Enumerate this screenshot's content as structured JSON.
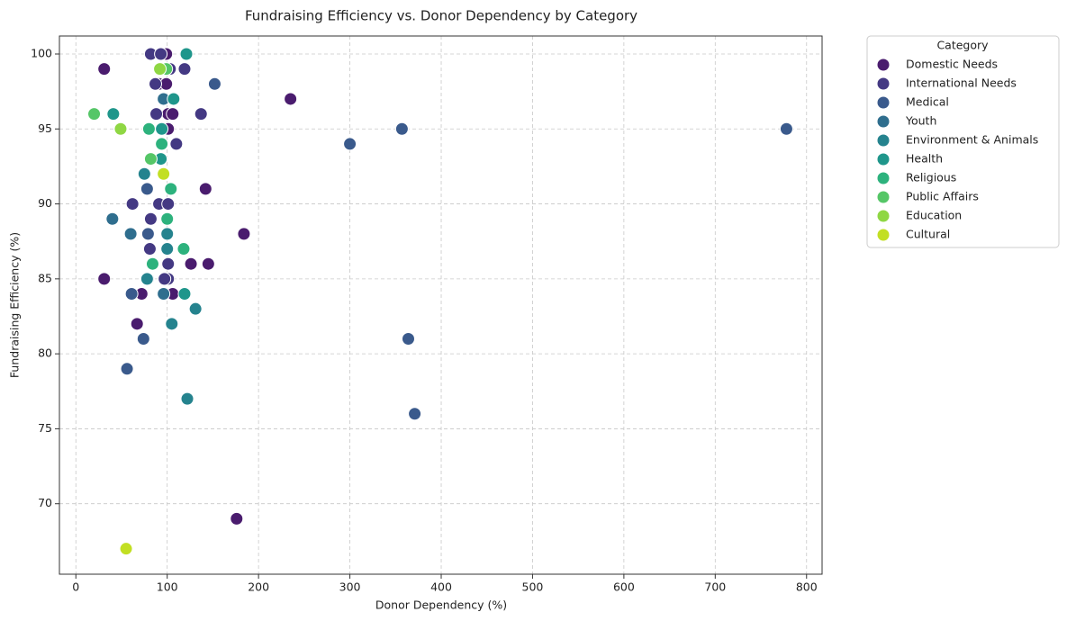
{
  "chart_data": {
    "type": "scatter",
    "title": "Fundraising Efficiency vs. Donor Dependency by Category",
    "x_label": "Donor Dependency (%)",
    "y_label": "Fundraising Efficiency (%)",
    "legend_title": "Category",
    "legend": "outside-upper-right",
    "grid": true,
    "xlim": [
      -18,
      817
    ],
    "ylim": [
      65.3,
      101.2
    ],
    "xticks": [
      0,
      100,
      200,
      300,
      400,
      500,
      600,
      700,
      800
    ],
    "yticks": [
      70,
      75,
      80,
      85,
      90,
      95,
      100
    ],
    "series": [
      {
        "name": "Domestic Needs",
        "color": "#4a1c6e",
        "x": [
          31,
          99,
          91,
          99,
          101,
          106,
          101,
          235,
          142,
          184,
          126,
          145,
          31,
          72,
          106,
          67,
          176
        ],
        "values": [
          99,
          100,
          98,
          98,
          96,
          96,
          95,
          97,
          91,
          88,
          86,
          86,
          85,
          84,
          84,
          82,
          69
        ]
      },
      {
        "name": "International Needs",
        "color": "#443983",
        "x": [
          82,
          93,
          119,
          103,
          87,
          96,
          88,
          137,
          110,
          62,
          91,
          101,
          82,
          81,
          101,
          101,
          97
        ],
        "values": [
          100,
          100,
          99,
          99,
          98,
          97,
          96,
          96,
          94,
          90,
          90,
          90,
          89,
          87,
          86,
          85,
          85
        ]
      },
      {
        "name": "Medical",
        "color": "#3a5a8c",
        "x": [
          152,
          357,
          778,
          300,
          78,
          79,
          61,
          74,
          364,
          56,
          371
        ],
        "values": [
          98,
          95,
          95,
          94,
          91,
          88,
          84,
          81,
          81,
          79,
          76
        ]
      },
      {
        "name": "Youth",
        "color": "#2f6e8e",
        "x": [
          40,
          60,
          96,
          79,
          75,
          96
        ],
        "values": [
          89,
          88,
          84,
          85,
          92,
          97
        ]
      },
      {
        "name": "Environment & Animals",
        "color": "#25838e",
        "x": [
          75,
          100,
          100,
          131,
          122,
          105,
          78
        ],
        "values": [
          92,
          88,
          87,
          83,
          77,
          82,
          85
        ]
      },
      {
        "name": "Health",
        "color": "#1f968b",
        "x": [
          121,
          41,
          107,
          94,
          119,
          93
        ],
        "values": [
          100,
          96,
          97,
          95,
          84,
          93
        ]
      },
      {
        "name": "Religious",
        "color": "#2db27d",
        "x": [
          80,
          118,
          84,
          100,
          104,
          94
        ],
        "values": [
          95,
          87,
          86,
          89,
          91,
          94
        ]
      },
      {
        "name": "Public Affairs",
        "color": "#55c667",
        "x": [
          20,
          82,
          99
        ],
        "values": [
          96,
          93,
          99
        ]
      },
      {
        "name": "Education",
        "color": "#8fd744",
        "x": [
          49,
          92
        ],
        "values": [
          95,
          99
        ]
      },
      {
        "name": "Cultural",
        "color": "#c2df23",
        "x": [
          96,
          55
        ],
        "values": [
          92,
          67
        ]
      }
    ]
  }
}
